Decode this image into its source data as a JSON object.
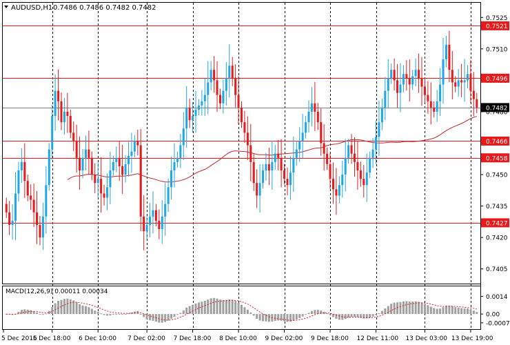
{
  "header": {
    "symbol_timeframe": "AUDUSD,H1",
    "ohlc": "0.7486 0.7486 0.7482 0.7482"
  },
  "macd_header": "MACD(12,26,9) 0.00011 0.00034",
  "colors": {
    "bull": "#1ea7e8",
    "bear": "#e8191b",
    "level_line": "#e8191b",
    "ma_line": "#c0282b",
    "macd_hist": "#a0a0a0",
    "signal": "#e8191b",
    "grid": "#000000"
  },
  "chart_data": [
    {
      "type": "candlestick",
      "title": "AUDUSD,H1",
      "ylim": [
        0.7398,
        0.7532
      ],
      "y_ticks": [
        "0.7525",
        "0.7510",
        "0.7495",
        "0.7480",
        "0.7465",
        "0.7450",
        "0.7435",
        "0.7420",
        "0.7405"
      ],
      "x_ticks": [
        "5 Dec 2016",
        "5 Dec 18:00",
        "6 Dec 10:00",
        "7 Dec 02:00",
        "7 Dec 18:00",
        "8 Dec 10:00",
        "9 Dec 02:00",
        "9 Dec 18:00",
        "12 Dec 11:00",
        "13 Dec 03:00",
        "13 Dec 19:00"
      ],
      "levels": [
        {
          "label": "0.7521",
          "value": 0.7521
        },
        {
          "label": "0.7496",
          "value": 0.7496
        },
        {
          "label": "0.7466",
          "value": 0.7466
        },
        {
          "label": "0.7458",
          "value": 0.7458
        },
        {
          "label": "0.7427",
          "value": 0.7427
        }
      ],
      "current_price": {
        "label": "0.7482",
        "value": 0.7482
      },
      "closes": [
        0.7432,
        0.7426,
        0.7428,
        0.7441,
        0.7452,
        0.7456,
        0.7447,
        0.744,
        0.7438,
        0.7432,
        0.7426,
        0.742,
        0.743,
        0.7445,
        0.7462,
        0.7478,
        0.749,
        0.7485,
        0.7475,
        0.748,
        0.7478,
        0.747,
        0.7466,
        0.7458,
        0.7452,
        0.7458,
        0.7462,
        0.7458,
        0.745,
        0.7446,
        0.7448,
        0.7441,
        0.7439,
        0.7444,
        0.7452,
        0.7456,
        0.7458,
        0.7454,
        0.745,
        0.7455,
        0.7459,
        0.7461,
        0.7466,
        0.7464,
        0.743,
        0.7423,
        0.7426,
        0.743,
        0.7433,
        0.7428,
        0.7424,
        0.743,
        0.7436,
        0.7444,
        0.7452,
        0.7456,
        0.7458,
        0.7464,
        0.7472,
        0.7482,
        0.7476,
        0.7478,
        0.7481,
        0.7483,
        0.7485,
        0.7488,
        0.7494,
        0.75,
        0.7495,
        0.7488,
        0.7484,
        0.749,
        0.7496,
        0.7502,
        0.7496,
        0.7488,
        0.7482,
        0.7475,
        0.747,
        0.7464,
        0.7456,
        0.7446,
        0.744,
        0.7446,
        0.7452,
        0.7455,
        0.7452,
        0.7456,
        0.746,
        0.7458,
        0.7452,
        0.7448,
        0.7445,
        0.7451,
        0.7458,
        0.7462,
        0.7466,
        0.747,
        0.7475,
        0.748,
        0.7484,
        0.748,
        0.7475,
        0.7465,
        0.746,
        0.7455,
        0.7448,
        0.7443,
        0.744,
        0.7445,
        0.745,
        0.7458,
        0.7464,
        0.746,
        0.7456,
        0.7452,
        0.7448,
        0.7445,
        0.7451,
        0.7458,
        0.7462,
        0.7468,
        0.7475,
        0.7482,
        0.749,
        0.7496,
        0.75,
        0.7495,
        0.7489,
        0.7493,
        0.7498,
        0.7496,
        0.7493,
        0.7497,
        0.75,
        0.7496,
        0.7492,
        0.7488,
        0.7485,
        0.7482,
        0.748,
        0.7485,
        0.7493,
        0.7505,
        0.7512,
        0.75,
        0.7494,
        0.7492,
        0.7495,
        0.7494,
        0.7495,
        0.7498,
        0.749,
        0.7486,
        0.7482
      ]
    },
    {
      "type": "bar",
      "title": "MACD(12,26,9)",
      "macd_value": "0.00011",
      "signal_value": "0.00034",
      "ylim": [
        -0.0012,
        0.0022
      ],
      "y_ticks": [
        "0.0014",
        "0.00",
        "-0.0007"
      ]
    }
  ]
}
